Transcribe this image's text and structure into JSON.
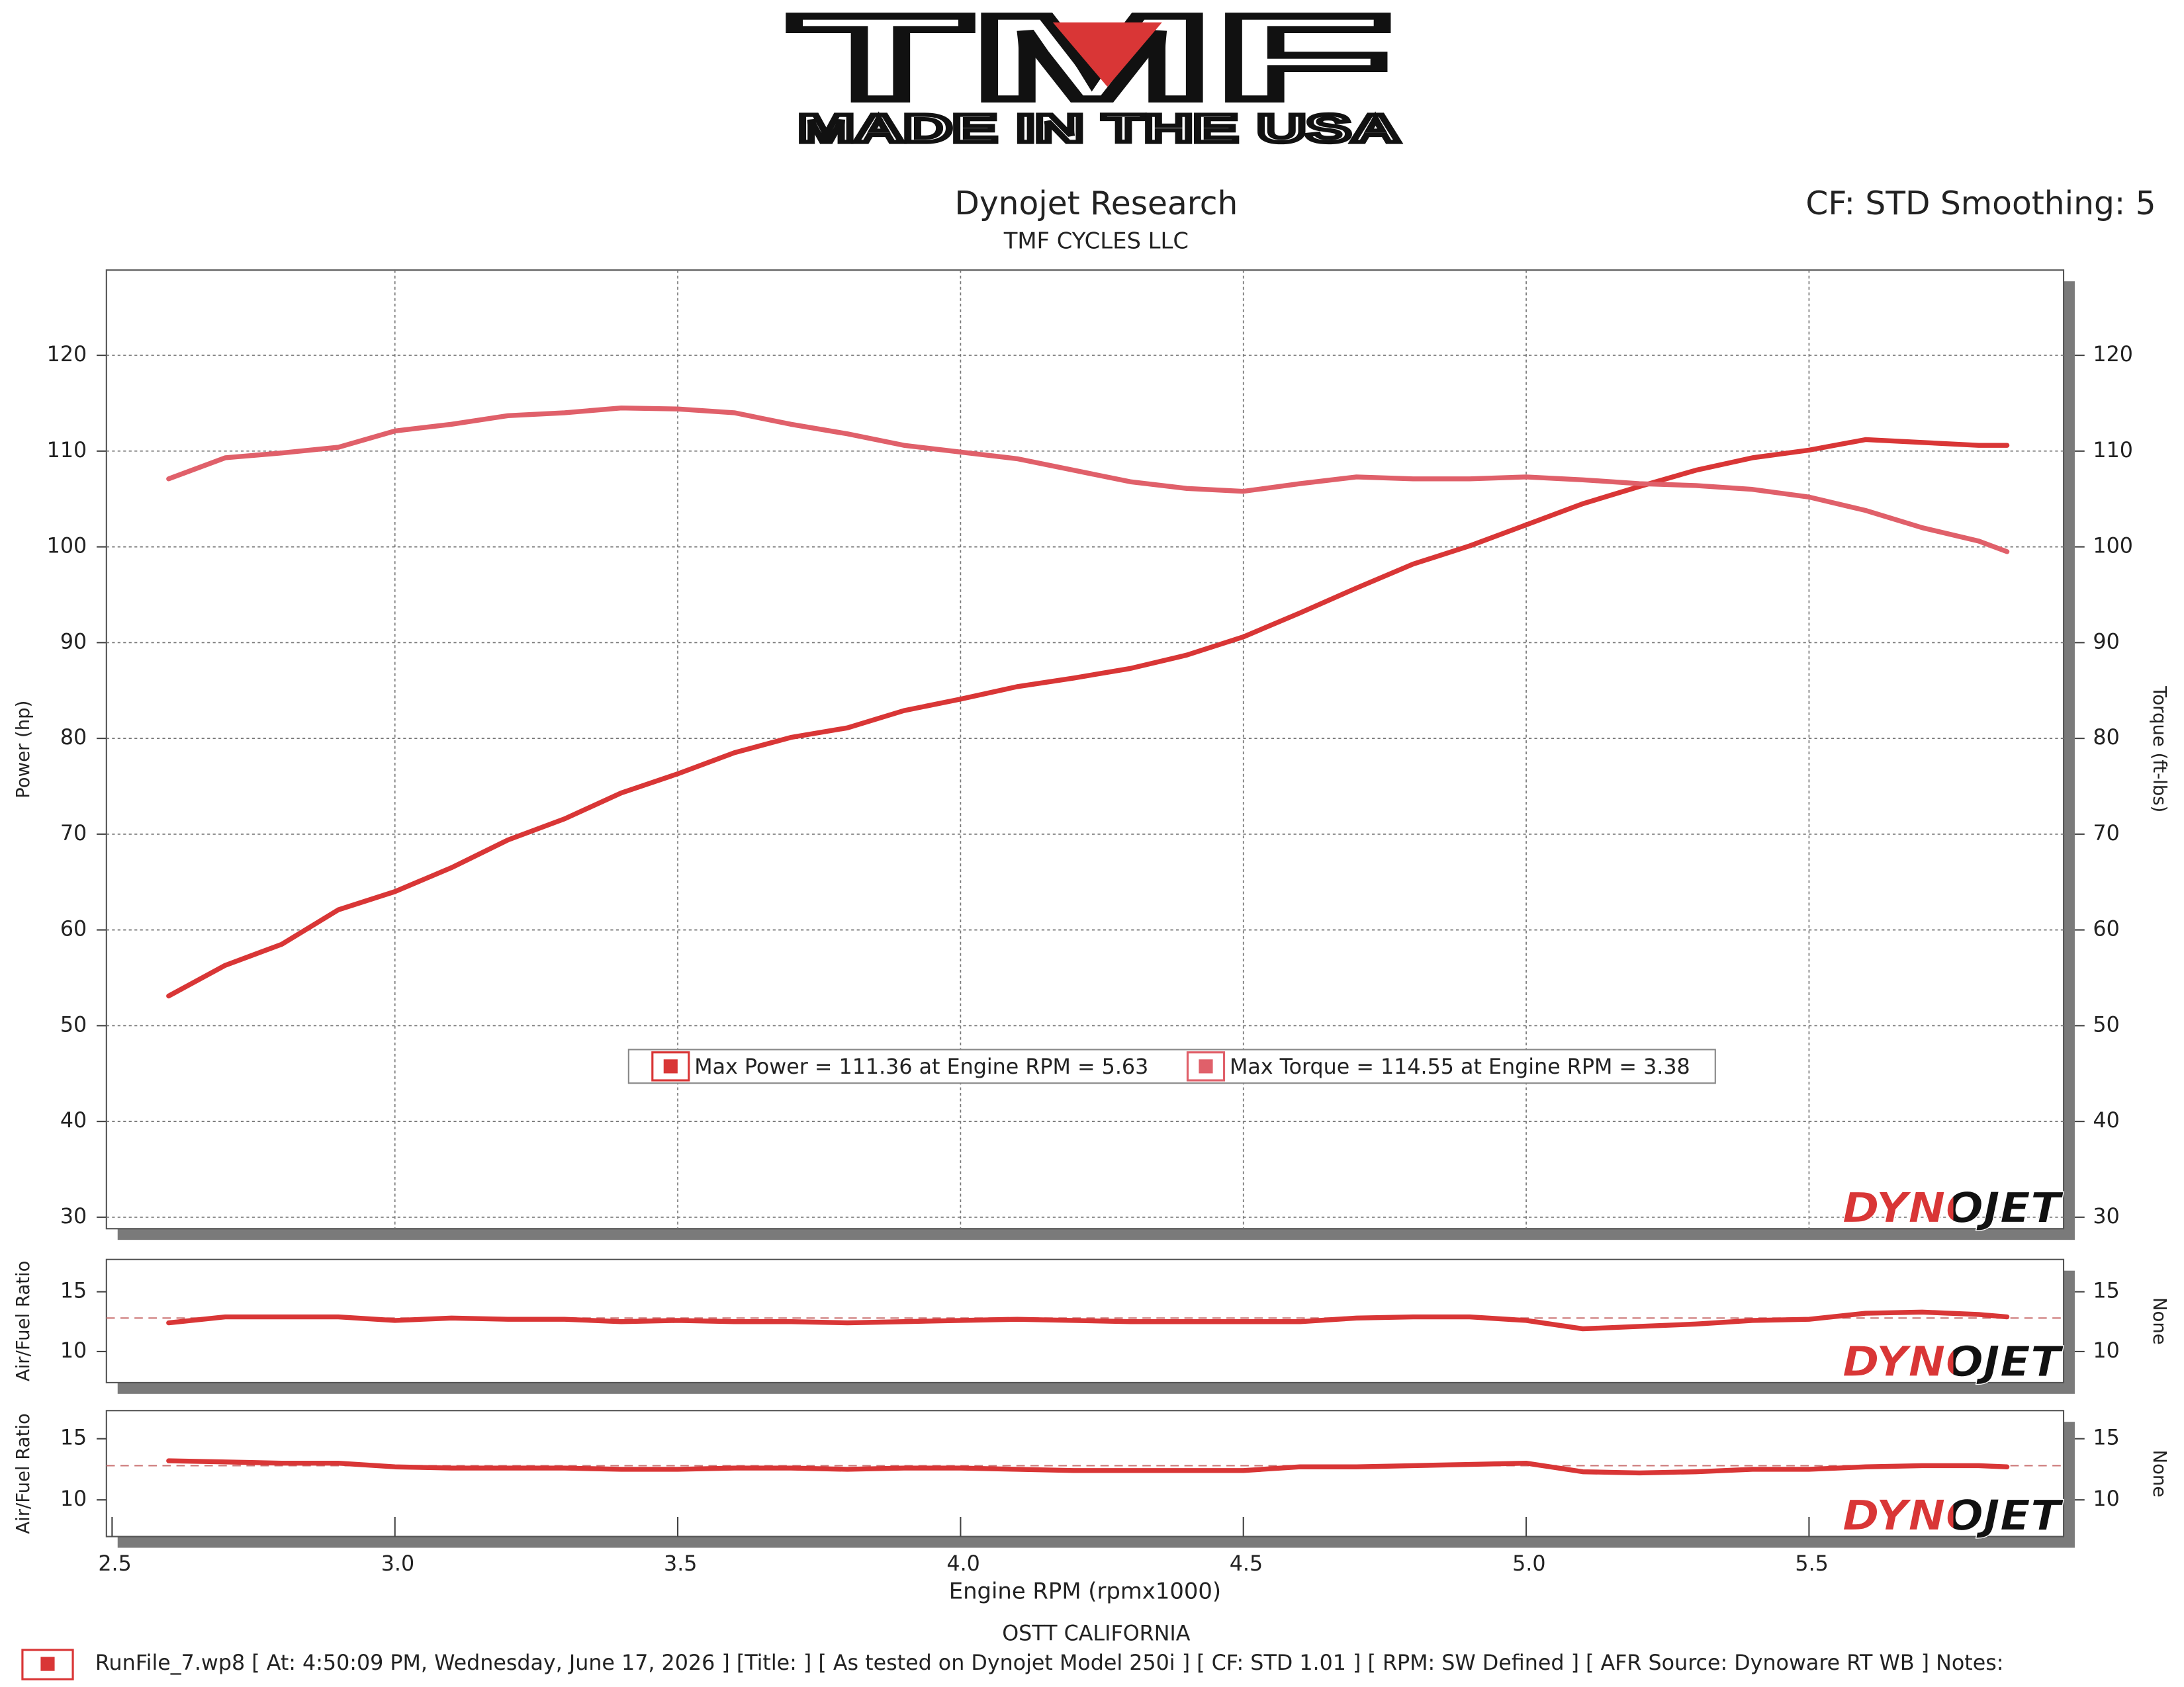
{
  "header": {
    "logo": "TMF",
    "logo_tagline": "MADE IN THE USA",
    "title": "Dynojet Research",
    "subtitle": "TMF CYCLES LLC",
    "settings": "CF: STD Smoothing: 5"
  },
  "chart_data": [
    {
      "type": "line",
      "ylabel": "Power (hp)",
      "y2label": "Torque (ft-lbs)",
      "watermark": "DYNOJET",
      "legend": "lower center",
      "grid": true,
      "xlim": [
        2.49,
        5.95
      ],
      "xticks": [
        3,
        3.5,
        4,
        4.5,
        5,
        5.5
      ],
      "ylim": [
        28.8,
        128.9
      ],
      "yticks": [
        30,
        40,
        50,
        60,
        70,
        80,
        90,
        100,
        110,
        120
      ],
      "y2lim": [
        28.8,
        128.9
      ],
      "y2ticks": [
        30,
        40,
        50,
        60,
        70,
        80,
        90,
        100,
        110,
        120
      ],
      "x": [
        2.6,
        2.7,
        2.8,
        2.9,
        3.0,
        3.1,
        3.2,
        3.3,
        3.4,
        3.5,
        3.6,
        3.7,
        3.8,
        3.9,
        4.0,
        4.1,
        4.2,
        4.3,
        4.4,
        4.5,
        4.6,
        4.7,
        4.8,
        4.9,
        5.0,
        5.1,
        5.2,
        5.3,
        5.4,
        5.5,
        5.6,
        5.7,
        5.8,
        5.85
      ],
      "series": [
        {
          "name": "Max Power = 111.36 at Engine RPM = 5.63",
          "color": "#d93636",
          "values": [
            53.1,
            56.3,
            58.5,
            62.1,
            64.0,
            66.5,
            69.4,
            71.6,
            74.3,
            76.3,
            78.5,
            80.1,
            81.1,
            82.9,
            84.1,
            85.4,
            86.3,
            87.3,
            88.7,
            90.6,
            93.1,
            95.7,
            98.2,
            100.1,
            102.3,
            104.5,
            106.3,
            108.0,
            109.3,
            110.1,
            111.2,
            110.9,
            110.6,
            110.6
          ]
        },
        {
          "name": "Max Torque = 114.55 at Engine RPM = 3.38",
          "color": "#e0606a",
          "axis": "y2",
          "values": [
            107.1,
            109.3,
            109.8,
            110.4,
            112.1,
            112.8,
            113.7,
            114.0,
            114.5,
            114.4,
            114.0,
            112.8,
            111.8,
            110.6,
            109.9,
            109.2,
            108.0,
            106.8,
            106.1,
            105.8,
            106.6,
            107.3,
            107.1,
            107.1,
            107.3,
            107.0,
            106.6,
            106.4,
            106.0,
            105.2,
            103.8,
            102.0,
            100.6,
            99.5
          ]
        }
      ]
    },
    {
      "type": "line",
      "ylabel": "Air/Fuel Ratio",
      "y2label": "None",
      "watermark": "DYNOJET",
      "xlim": [
        2.49,
        5.95
      ],
      "ylim": [
        7.4,
        17.7
      ],
      "yticks": [
        10,
        15
      ],
      "y2lim": [
        7.4,
        17.7
      ],
      "y2ticks": [
        10,
        15
      ],
      "reference_line": 12.8,
      "x": [
        2.6,
        2.7,
        2.8,
        2.9,
        3.0,
        3.1,
        3.2,
        3.3,
        3.4,
        3.5,
        3.6,
        3.7,
        3.8,
        3.9,
        4.0,
        4.1,
        4.2,
        4.3,
        4.4,
        4.5,
        4.6,
        4.7,
        4.8,
        4.9,
        5.0,
        5.1,
        5.2,
        5.3,
        5.4,
        5.5,
        5.6,
        5.7,
        5.8,
        5.85
      ],
      "series": [
        {
          "color": "#d93636",
          "values": [
            12.4,
            12.9,
            12.9,
            12.9,
            12.6,
            12.8,
            12.7,
            12.7,
            12.5,
            12.6,
            12.5,
            12.5,
            12.4,
            12.5,
            12.6,
            12.7,
            12.6,
            12.5,
            12.5,
            12.5,
            12.5,
            12.8,
            12.9,
            12.9,
            12.6,
            11.9,
            12.1,
            12.3,
            12.6,
            12.7,
            13.2,
            13.3,
            13.1,
            12.9
          ]
        }
      ]
    },
    {
      "type": "line",
      "ylabel": "Air/Fuel Ratio",
      "y2label": "None",
      "xlabel": "Engine RPM (rpmx1000)",
      "watermark": "DYNOJET",
      "xlim": [
        2.49,
        5.95
      ],
      "xticks": [
        2.5,
        {
          "value": 3,
          "label": "3.0"
        },
        3.5,
        {
          "value": 4,
          "label": "4.0"
        },
        4.5,
        {
          "value": 5,
          "label": "5.0"
        },
        5.5
      ],
      "ylim": [
        7.0,
        17.3
      ],
      "yticks": [
        10,
        15
      ],
      "y2lim": [
        7.0,
        17.3
      ],
      "y2ticks": [
        10,
        15
      ],
      "reference_line": 12.8,
      "x": [
        2.6,
        2.7,
        2.8,
        2.9,
        3.0,
        3.1,
        3.2,
        3.3,
        3.4,
        3.5,
        3.6,
        3.7,
        3.8,
        3.9,
        4.0,
        4.1,
        4.2,
        4.3,
        4.4,
        4.5,
        4.6,
        4.7,
        4.8,
        4.9,
        5.0,
        5.1,
        5.2,
        5.3,
        5.4,
        5.5,
        5.6,
        5.7,
        5.8,
        5.85
      ],
      "series": [
        {
          "color": "#d93636",
          "values": [
            13.2,
            13.1,
            13.0,
            13.0,
            12.7,
            12.6,
            12.6,
            12.6,
            12.5,
            12.5,
            12.6,
            12.6,
            12.5,
            12.6,
            12.6,
            12.5,
            12.4,
            12.4,
            12.4,
            12.4,
            12.7,
            12.7,
            12.8,
            12.9,
            13.0,
            12.3,
            12.2,
            12.3,
            12.5,
            12.5,
            12.7,
            12.8,
            12.8,
            12.7
          ]
        }
      ]
    }
  ],
  "footer": {
    "location": "OSTT CALIFORNIA",
    "run_info": "RunFile_7.wp8 [ At: 4:50:09 PM, Wednesday, June 17, 2026 ] [Title: ]  [ As tested on Dynojet Model 250i ] [ CF: STD 1.01 ] [ RPM: SW Defined ] [ AFR Source: Dynoware RT WB ] Notes:"
  }
}
